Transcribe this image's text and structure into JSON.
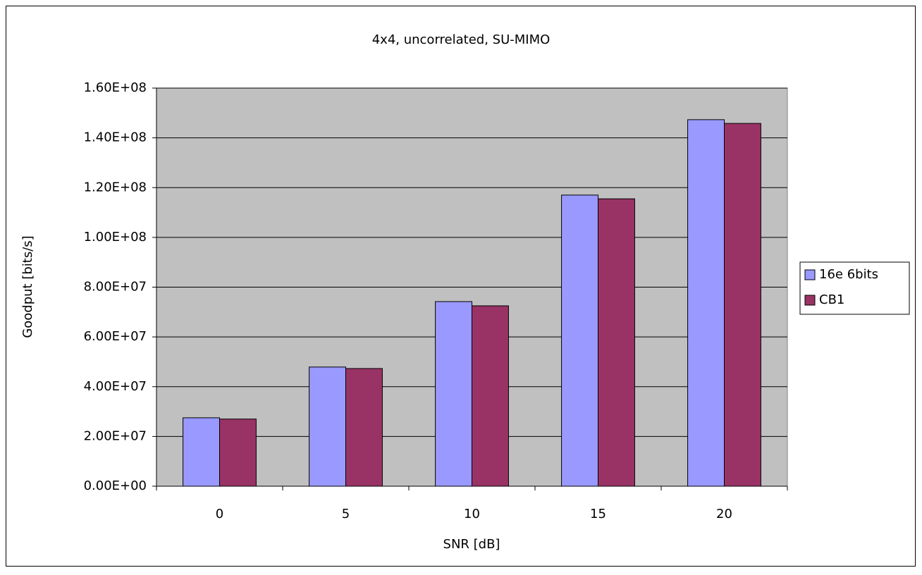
{
  "chart_data": {
    "type": "bar",
    "title": "4x4, uncorrelated, SU-MIMO",
    "x_label": "SNR [dB]",
    "y_label": "Goodput [bits/s]",
    "categories": [
      "0",
      "5",
      "10",
      "15",
      "20"
    ],
    "series": [
      {
        "name": "16e 6bits",
        "color": "#9999ff",
        "values": [
          27500000,
          47900000,
          74200000,
          117000000,
          147300000
        ]
      },
      {
        "name": "CB1",
        "color": "#993366",
        "values": [
          27000000,
          47300000,
          72500000,
          115500000,
          145800000
        ]
      }
    ],
    "ylim": [
      0,
      160000000
    ],
    "yticks": [
      {
        "value": 0,
        "label": "0.00E+00"
      },
      {
        "value": 20000000,
        "label": "2.00E+07"
      },
      {
        "value": 40000000,
        "label": "4.00E+07"
      },
      {
        "value": 60000000,
        "label": "6.00E+07"
      },
      {
        "value": 80000000,
        "label": "8.00E+07"
      },
      {
        "value": 100000000,
        "label": "1.00E+08"
      },
      {
        "value": 120000000,
        "label": "1.20E+08"
      },
      {
        "value": 140000000,
        "label": "1.40E+08"
      },
      {
        "value": 160000000,
        "label": "1.60E+08"
      }
    ],
    "grid": true,
    "legend": "right",
    "plot_background": "#c0c0c0"
  }
}
